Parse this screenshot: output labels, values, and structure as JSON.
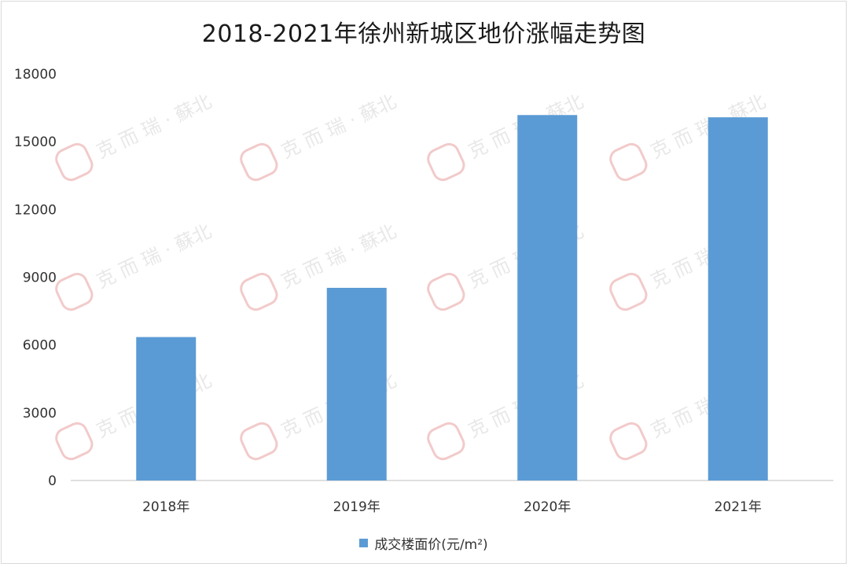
{
  "chart_data": {
    "type": "bar",
    "title": "2018-2021年徐州新城区地价涨幅走势图",
    "categories": [
      "2018年",
      "2019年",
      "2020年",
      "2021年"
    ],
    "series": [
      {
        "name": "成交楼面价(元/m²)",
        "values": [
          6350,
          8530,
          16180,
          16080
        ]
      }
    ],
    "ylim": [
      0,
      18000
    ],
    "yticks": [
      0,
      3000,
      6000,
      9000,
      12000,
      15000,
      18000
    ],
    "grid": false,
    "legend_position": "bottom",
    "bar_color": "#5b9bd5"
  },
  "watermark": {
    "text": "克 而 瑞 · 蘇北"
  }
}
